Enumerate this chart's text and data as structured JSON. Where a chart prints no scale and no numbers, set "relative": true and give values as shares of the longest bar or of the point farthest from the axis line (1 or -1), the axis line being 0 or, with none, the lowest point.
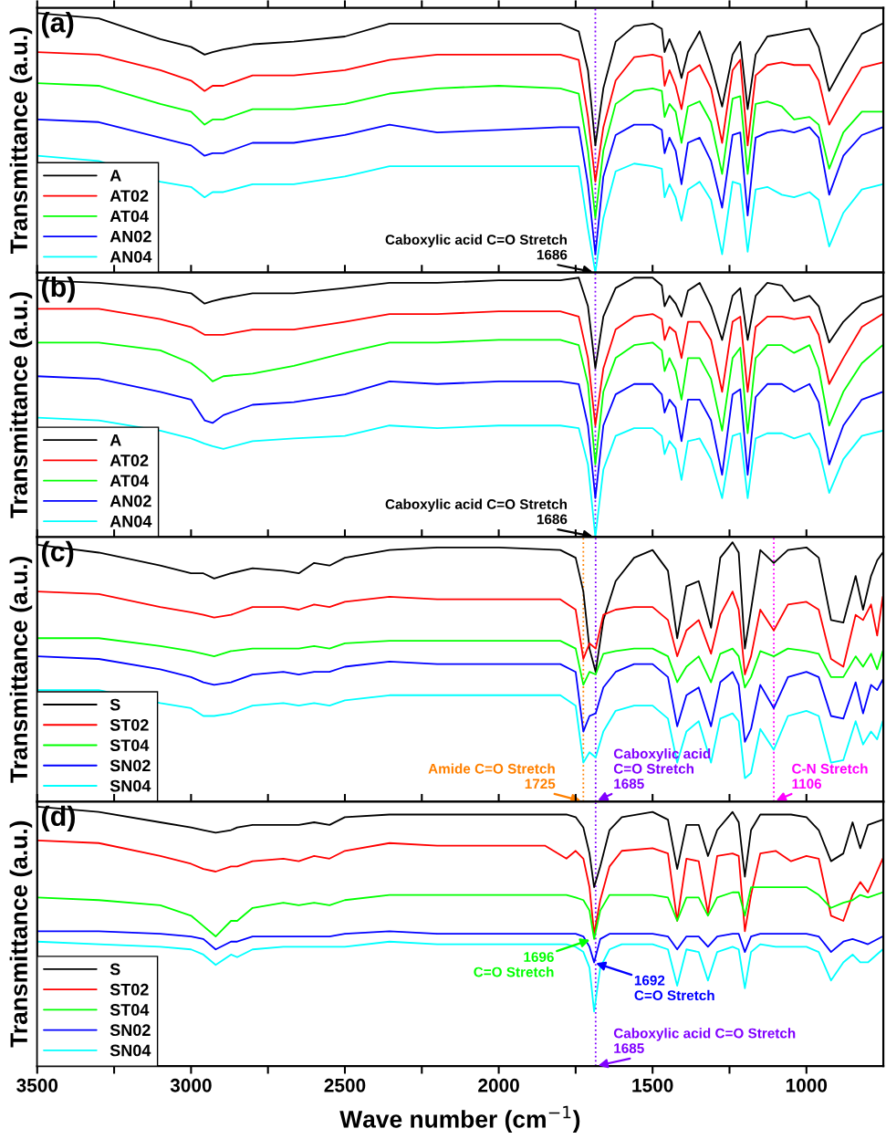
{
  "chart_data": [
    {
      "type": "line",
      "title": "(a)",
      "ylabel": "Transmittance (a.u.)",
      "relative": true,
      "legend": "bottom left",
      "tick_labels": false,
      "line_style": "solid",
      "marker": "none",
      "x": [
        3500,
        3300,
        3100,
        3000,
        2956,
        2930,
        2895,
        2800,
        2666,
        2500,
        2355,
        2200,
        2000,
        1800,
        1740,
        1710,
        1686,
        1660,
        1620,
        1560,
        1500,
        1470,
        1461,
        1445,
        1425,
        1406,
        1385,
        1347,
        1310,
        1274,
        1240,
        1215,
        1191,
        1165,
        1127,
        1080,
        1040,
        990,
        960,
        926,
        880,
        820,
        752
      ],
      "xlim": [
        3500,
        750
      ],
      "xticks": [
        3500,
        {
          "value": 3250,
          "label": null
        },
        3000,
        {
          "value": 2750,
          "label": null
        },
        2500,
        {
          "value": 2250,
          "label": null
        },
        2000,
        {
          "value": 1750,
          "label": null
        },
        1500,
        {
          "value": 1250,
          "label": null
        },
        1000
      ],
      "series": [
        {
          "name": "A",
          "color": "#000000",
          "values": [
            1.0,
            0.98,
            0.9,
            0.87,
            0.84,
            0.85,
            0.86,
            0.88,
            0.89,
            0.91,
            0.96,
            0.96,
            0.96,
            0.96,
            0.93,
            0.78,
            0.49,
            0.71,
            0.89,
            0.95,
            0.96,
            0.94,
            0.85,
            0.9,
            0.84,
            0.75,
            0.85,
            0.93,
            0.8,
            0.64,
            0.84,
            0.89,
            0.63,
            0.84,
            0.91,
            0.92,
            0.93,
            0.94,
            0.87,
            0.7,
            0.8,
            0.92,
            0.96
          ]
        },
        {
          "name": "AT02",
          "color": "#ff0000",
          "values": [
            0.85,
            0.84,
            0.78,
            0.74,
            0.7,
            0.72,
            0.72,
            0.76,
            0.76,
            0.78,
            0.82,
            0.84,
            0.84,
            0.84,
            0.82,
            0.6,
            0.35,
            0.56,
            0.74,
            0.83,
            0.84,
            0.83,
            0.72,
            0.78,
            0.72,
            0.63,
            0.77,
            0.8,
            0.71,
            0.5,
            0.78,
            0.82,
            0.49,
            0.76,
            0.8,
            0.81,
            0.8,
            0.8,
            0.74,
            0.57,
            0.67,
            0.79,
            0.81
          ]
        },
        {
          "name": "AT04",
          "color": "#00ff00",
          "values": [
            0.73,
            0.72,
            0.65,
            0.62,
            0.57,
            0.59,
            0.59,
            0.63,
            0.63,
            0.65,
            0.69,
            0.71,
            0.72,
            0.71,
            0.69,
            0.47,
            0.21,
            0.47,
            0.65,
            0.7,
            0.71,
            0.7,
            0.6,
            0.65,
            0.62,
            0.5,
            0.64,
            0.66,
            0.58,
            0.38,
            0.67,
            0.68,
            0.38,
            0.65,
            0.66,
            0.64,
            0.59,
            0.6,
            0.57,
            0.4,
            0.54,
            0.62,
            0.62
          ]
        },
        {
          "name": "AN02",
          "color": "#0000ff",
          "values": [
            0.59,
            0.58,
            0.52,
            0.49,
            0.45,
            0.46,
            0.46,
            0.5,
            0.5,
            0.53,
            0.57,
            0.54,
            0.55,
            0.56,
            0.56,
            0.34,
            0.07,
            0.37,
            0.53,
            0.57,
            0.57,
            0.55,
            0.46,
            0.52,
            0.47,
            0.34,
            0.5,
            0.52,
            0.43,
            0.25,
            0.53,
            0.54,
            0.22,
            0.52,
            0.54,
            0.55,
            0.54,
            0.56,
            0.52,
            0.3,
            0.45,
            0.53,
            0.56
          ]
        },
        {
          "name": "AN04",
          "color": "#00ffff",
          "values": [
            0.45,
            0.43,
            0.35,
            0.33,
            0.29,
            0.31,
            0.31,
            0.34,
            0.34,
            0.37,
            0.41,
            0.41,
            0.41,
            0.41,
            0.41,
            0.17,
            0.0,
            0.21,
            0.39,
            0.42,
            0.41,
            0.4,
            0.29,
            0.34,
            0.29,
            0.2,
            0.32,
            0.35,
            0.28,
            0.07,
            0.35,
            0.34,
            0.08,
            0.32,
            0.33,
            0.3,
            0.29,
            0.31,
            0.28,
            0.1,
            0.23,
            0.32,
            0.34
          ]
        }
      ],
      "ref_lines": [
        {
          "axis": "x",
          "value": 1686,
          "color": "#8000ff",
          "line_style": "dotted"
        }
      ],
      "annotations": [
        {
          "text": "Caboxylic acid C=O Stretch\n1686",
          "x": 1686,
          "y": 0
        }
      ]
    },
    {
      "type": "line",
      "title": "(b)",
      "ylabel": "Transmittance (a.u.)",
      "relative": true,
      "legend": "bottom left",
      "tick_labels": false,
      "line_style": "solid",
      "marker": "none",
      "x": [
        3500,
        3300,
        3100,
        3000,
        2956,
        2930,
        2895,
        2800,
        2666,
        2500,
        2355,
        2200,
        2000,
        1800,
        1740,
        1710,
        1686,
        1660,
        1620,
        1560,
        1500,
        1470,
        1461,
        1445,
        1425,
        1406,
        1385,
        1347,
        1310,
        1274,
        1240,
        1215,
        1191,
        1165,
        1127,
        1080,
        1040,
        990,
        960,
        926,
        880,
        820,
        752
      ],
      "xlim": [
        3500,
        750
      ],
      "xticks": [
        3500,
        {
          "value": 3250,
          "label": null
        },
        3000,
        {
          "value": 2750,
          "label": null
        },
        2500,
        {
          "value": 2250,
          "label": null
        },
        2000,
        {
          "value": 1750,
          "label": null
        },
        1500,
        {
          "value": 1250,
          "label": null
        },
        1000
      ],
      "series": [
        {
          "name": "A",
          "color": "#000000",
          "values": [
            0.99,
            0.98,
            0.96,
            0.94,
            0.9,
            0.91,
            0.92,
            0.94,
            0.94,
            0.96,
            0.98,
            0.98,
            0.99,
            0.99,
            1.0,
            0.89,
            0.65,
            0.85,
            0.96,
            1.0,
            1.0,
            0.97,
            0.89,
            0.93,
            0.9,
            0.85,
            0.95,
            0.98,
            0.89,
            0.76,
            0.93,
            0.96,
            0.76,
            0.93,
            0.98,
            0.97,
            0.91,
            0.93,
            0.89,
            0.75,
            0.83,
            0.9,
            0.93
          ]
        },
        {
          "name": "AT02",
          "color": "#ff0000",
          "values": [
            0.88,
            0.88,
            0.84,
            0.81,
            0.78,
            0.78,
            0.78,
            0.8,
            0.8,
            0.83,
            0.86,
            0.86,
            0.87,
            0.87,
            0.85,
            0.69,
            0.43,
            0.65,
            0.8,
            0.85,
            0.86,
            0.84,
            0.76,
            0.81,
            0.79,
            0.69,
            0.83,
            0.83,
            0.76,
            0.56,
            0.83,
            0.85,
            0.56,
            0.81,
            0.85,
            0.85,
            0.84,
            0.85,
            0.78,
            0.59,
            0.69,
            0.81,
            0.86
          ]
        },
        {
          "name": "AT04",
          "color": "#00ff00",
          "values": [
            0.75,
            0.75,
            0.72,
            0.67,
            0.63,
            0.6,
            0.62,
            0.63,
            0.66,
            0.71,
            0.75,
            0.75,
            0.76,
            0.76,
            0.74,
            0.59,
            0.28,
            0.56,
            0.69,
            0.74,
            0.75,
            0.72,
            0.64,
            0.69,
            0.64,
            0.53,
            0.69,
            0.69,
            0.61,
            0.41,
            0.69,
            0.73,
            0.4,
            0.69,
            0.74,
            0.74,
            0.71,
            0.74,
            0.65,
            0.43,
            0.56,
            0.67,
            0.74
          ]
        },
        {
          "name": "AN02",
          "color": "#0000ff",
          "values": [
            0.62,
            0.61,
            0.56,
            0.53,
            0.45,
            0.44,
            0.47,
            0.51,
            0.52,
            0.55,
            0.6,
            0.59,
            0.6,
            0.6,
            0.59,
            0.43,
            0.15,
            0.43,
            0.55,
            0.59,
            0.59,
            0.55,
            0.48,
            0.53,
            0.5,
            0.37,
            0.53,
            0.53,
            0.45,
            0.24,
            0.55,
            0.57,
            0.24,
            0.54,
            0.59,
            0.59,
            0.56,
            0.59,
            0.52,
            0.28,
            0.43,
            0.53,
            0.56
          ]
        },
        {
          "name": "AN04",
          "color": "#00ffff",
          "values": [
            0.46,
            0.45,
            0.41,
            0.38,
            0.36,
            0.35,
            0.34,
            0.37,
            0.38,
            0.39,
            0.43,
            0.42,
            0.43,
            0.43,
            0.42,
            0.28,
            0.0,
            0.26,
            0.39,
            0.42,
            0.42,
            0.39,
            0.32,
            0.37,
            0.34,
            0.22,
            0.37,
            0.38,
            0.3,
            0.15,
            0.39,
            0.4,
            0.15,
            0.38,
            0.4,
            0.4,
            0.38,
            0.4,
            0.34,
            0.17,
            0.3,
            0.39,
            0.41
          ]
        }
      ],
      "ref_lines": [
        {
          "axis": "x",
          "value": 1686,
          "color": "#8000ff",
          "line_style": "dotted"
        }
      ],
      "annotations": [
        {
          "text": "Caboxylic acid C=O Stretch\n1686",
          "x": 1686,
          "y": 0
        }
      ]
    },
    {
      "type": "line",
      "title": "(c)",
      "ylabel": "Transmittance (a.u.)",
      "relative": true,
      "legend": "bottom left",
      "tick_labels": false,
      "line_style": "solid",
      "marker": "none",
      "x": [
        3500,
        3300,
        3100,
        3000,
        2960,
        2925,
        2870,
        2800,
        2700,
        2650,
        2600,
        2550,
        2500,
        2355,
        2200,
        2000,
        1800,
        1750,
        1725,
        1705,
        1685,
        1660,
        1620,
        1560,
        1500,
        1450,
        1420,
        1390,
        1350,
        1310,
        1280,
        1240,
        1220,
        1200,
        1180,
        1150,
        1106,
        1060,
        1000,
        960,
        920,
        880,
        840,
        816,
        790,
        770,
        752
      ],
      "xlim": [
        3500,
        750
      ],
      "xticks": [
        3500,
        {
          "value": 3250,
          "label": null
        },
        3000,
        {
          "value": 2750,
          "label": null
        },
        2500,
        {
          "value": 2250,
          "label": null
        },
        2000,
        {
          "value": 1750,
          "label": null
        },
        1500,
        {
          "value": 1250,
          "label": null
        },
        1000
      ],
      "series": [
        {
          "name": "S",
          "color": "#000000",
          "values": [
            0.99,
            0.96,
            0.91,
            0.88,
            0.88,
            0.86,
            0.88,
            0.9,
            0.89,
            0.88,
            0.92,
            0.91,
            0.94,
            0.97,
            0.98,
            0.98,
            0.97,
            0.94,
            0.81,
            0.59,
            0.5,
            0.7,
            0.85,
            0.94,
            0.97,
            0.89,
            0.63,
            0.83,
            0.85,
            0.67,
            0.94,
            1.0,
            0.96,
            0.59,
            0.74,
            0.97,
            0.92,
            0.97,
            0.98,
            0.94,
            0.7,
            0.69,
            0.87,
            0.74,
            0.87,
            0.93,
            0.96
          ]
        },
        {
          "name": "ST02",
          "color": "#ff0000",
          "values": [
            0.81,
            0.8,
            0.75,
            0.73,
            0.72,
            0.71,
            0.72,
            0.75,
            0.75,
            0.74,
            0.76,
            0.75,
            0.77,
            0.79,
            0.78,
            0.78,
            0.78,
            0.74,
            0.55,
            0.61,
            0.59,
            0.72,
            0.74,
            0.75,
            0.75,
            0.7,
            0.56,
            0.66,
            0.7,
            0.57,
            0.72,
            0.81,
            0.74,
            0.49,
            0.56,
            0.74,
            0.66,
            0.76,
            0.77,
            0.74,
            0.55,
            0.52,
            0.72,
            0.7,
            0.76,
            0.64,
            0.79
          ]
        },
        {
          "name": "ST04",
          "color": "#00ff00",
          "values": [
            0.63,
            0.63,
            0.6,
            0.58,
            0.57,
            0.56,
            0.58,
            0.59,
            0.59,
            0.59,
            0.6,
            0.59,
            0.61,
            0.62,
            0.62,
            0.62,
            0.62,
            0.59,
            0.45,
            0.5,
            0.49,
            0.57,
            0.58,
            0.59,
            0.59,
            0.56,
            0.46,
            0.52,
            0.56,
            0.46,
            0.57,
            0.59,
            0.56,
            0.44,
            0.48,
            0.58,
            0.56,
            0.59,
            0.58,
            0.57,
            0.48,
            0.48,
            0.56,
            0.52,
            0.57,
            0.51,
            0.58
          ]
        },
        {
          "name": "SN02",
          "color": "#0000ff",
          "values": [
            0.56,
            0.55,
            0.51,
            0.48,
            0.46,
            0.45,
            0.46,
            0.49,
            0.5,
            0.49,
            0.5,
            0.5,
            0.52,
            0.54,
            0.53,
            0.53,
            0.53,
            0.5,
            0.27,
            0.33,
            0.34,
            0.44,
            0.5,
            0.53,
            0.53,
            0.48,
            0.29,
            0.41,
            0.44,
            0.29,
            0.46,
            0.5,
            0.45,
            0.23,
            0.28,
            0.45,
            0.36,
            0.48,
            0.5,
            0.48,
            0.33,
            0.32,
            0.46,
            0.34,
            0.45,
            0.43,
            0.47
          ]
        },
        {
          "name": "SN04",
          "color": "#00ffff",
          "values": [
            0.43,
            0.43,
            0.38,
            0.36,
            0.33,
            0.33,
            0.34,
            0.37,
            0.38,
            0.37,
            0.38,
            0.37,
            0.39,
            0.41,
            0.41,
            0.41,
            0.41,
            0.37,
            0.15,
            0.19,
            0.17,
            0.27,
            0.35,
            0.37,
            0.37,
            0.32,
            0.15,
            0.27,
            0.31,
            0.15,
            0.32,
            0.34,
            0.31,
            0.09,
            0.11,
            0.28,
            0.2,
            0.33,
            0.35,
            0.33,
            0.15,
            0.16,
            0.31,
            0.22,
            0.27,
            0.24,
            0.31
          ]
        }
      ],
      "ref_lines": [
        {
          "axis": "x",
          "value": 1725,
          "color": "#ff8000",
          "line_style": "dotted"
        },
        {
          "axis": "x",
          "value": 1685,
          "color": "#8000ff",
          "line_style": "dotted"
        },
        {
          "axis": "x",
          "value": 1106,
          "color": "#ff00ff",
          "line_style": "dotted"
        }
      ],
      "annotations": [
        {
          "text": "Amide C=O Stretch\n1725",
          "x": 1725,
          "y": 0
        },
        {
          "text": "Caboxylic acid\nC=O Stretch\n1685",
          "x": 1685,
          "y": 0
        },
        {
          "text": "C-N Stretch\n1106",
          "x": 1106,
          "y": 0
        }
      ]
    },
    {
      "type": "line",
      "title": "(d)",
      "ylabel": "Transmittance (a.u.)",
      "xlabel": "Wave number (cm$^{−1}$)",
      "relative": true,
      "legend": "bottom left",
      "tick_labels": "x",
      "line_style": "solid",
      "marker": "none",
      "x": [
        3500,
        3300,
        3100,
        3000,
        2960,
        2920,
        2870,
        2850,
        2800,
        2700,
        2650,
        2600,
        2550,
        2500,
        2355,
        2200,
        2000,
        1850,
        1780,
        1750,
        1725,
        1705,
        1690,
        1670,
        1640,
        1600,
        1500,
        1450,
        1420,
        1390,
        1350,
        1320,
        1290,
        1240,
        1220,
        1200,
        1180,
        1150,
        1100,
        1050,
        1000,
        960,
        920,
        880,
        850,
        825,
        800,
        752
      ],
      "xlim": [
        3500,
        750
      ],
      "xticks": [
        3500,
        {
          "value": 3250,
          "label": null
        },
        3000,
        {
          "value": 2750,
          "label": null
        },
        2500,
        {
          "value": 2250,
          "label": null
        },
        2000,
        {
          "value": 1750,
          "label": null
        },
        1500,
        {
          "value": 1250,
          "label": null
        },
        1000
      ],
      "series": [
        {
          "name": "S",
          "color": "#000000",
          "values": [
            1.0,
            0.98,
            0.94,
            0.92,
            0.91,
            0.9,
            0.91,
            0.92,
            0.93,
            0.93,
            0.93,
            0.94,
            0.93,
            0.96,
            0.97,
            0.97,
            0.97,
            0.97,
            0.97,
            0.96,
            0.92,
            0.82,
            0.69,
            0.77,
            0.91,
            0.96,
            0.98,
            0.95,
            0.76,
            0.93,
            0.93,
            0.81,
            0.91,
            0.98,
            0.94,
            0.73,
            0.91,
            0.97,
            0.97,
            0.97,
            0.96,
            0.91,
            0.79,
            0.82,
            0.94,
            0.84,
            0.93,
            0.95
          ]
        },
        {
          "name": "ST02",
          "color": "#ff0000",
          "values": [
            0.87,
            0.86,
            0.81,
            0.78,
            0.76,
            0.75,
            0.77,
            0.77,
            0.79,
            0.8,
            0.79,
            0.81,
            0.8,
            0.83,
            0.86,
            0.85,
            0.85,
            0.85,
            0.8,
            0.83,
            0.8,
            0.69,
            0.51,
            0.64,
            0.77,
            0.83,
            0.84,
            0.82,
            0.56,
            0.8,
            0.79,
            0.59,
            0.81,
            0.82,
            0.81,
            0.52,
            0.66,
            0.82,
            0.83,
            0.79,
            0.81,
            0.8,
            0.58,
            0.56,
            0.66,
            0.71,
            0.67,
            0.8
          ]
        },
        {
          "name": "ST04",
          "color": "#00ff00",
          "values": [
            0.65,
            0.64,
            0.62,
            0.58,
            0.54,
            0.5,
            0.56,
            0.56,
            0.61,
            0.63,
            0.62,
            0.63,
            0.62,
            0.64,
            0.66,
            0.66,
            0.66,
            0.66,
            0.66,
            0.65,
            0.64,
            0.6,
            0.49,
            0.6,
            0.66,
            0.66,
            0.66,
            0.65,
            0.56,
            0.65,
            0.65,
            0.58,
            0.65,
            0.67,
            0.67,
            0.58,
            0.69,
            0.69,
            0.69,
            0.69,
            0.69,
            0.66,
            0.61,
            0.63,
            0.64,
            0.66,
            0.65,
            0.67
          ]
        },
        {
          "name": "SN02",
          "color": "#0000ff",
          "values": [
            0.52,
            0.52,
            0.51,
            0.5,
            0.49,
            0.45,
            0.48,
            0.48,
            0.5,
            0.5,
            0.5,
            0.5,
            0.5,
            0.51,
            0.52,
            0.51,
            0.51,
            0.51,
            0.51,
            0.51,
            0.5,
            0.46,
            0.4,
            0.49,
            0.51,
            0.51,
            0.51,
            0.5,
            0.45,
            0.5,
            0.5,
            0.46,
            0.5,
            0.51,
            0.51,
            0.44,
            0.5,
            0.51,
            0.51,
            0.51,
            0.51,
            0.5,
            0.44,
            0.48,
            0.49,
            0.48,
            0.47,
            0.5
          ]
        },
        {
          "name": "SN04",
          "color": "#00ffff",
          "values": [
            0.48,
            0.47,
            0.46,
            0.45,
            0.43,
            0.39,
            0.43,
            0.42,
            0.45,
            0.46,
            0.46,
            0.46,
            0.46,
            0.46,
            0.48,
            0.47,
            0.47,
            0.47,
            0.47,
            0.46,
            0.44,
            0.38,
            0.21,
            0.38,
            0.45,
            0.47,
            0.47,
            0.45,
            0.31,
            0.45,
            0.44,
            0.33,
            0.44,
            0.46,
            0.45,
            0.3,
            0.44,
            0.47,
            0.46,
            0.46,
            0.46,
            0.44,
            0.33,
            0.4,
            0.43,
            0.4,
            0.4,
            0.45
          ]
        }
      ],
      "ref_lines": [
        {
          "axis": "x",
          "value": 1685,
          "color": "#8000ff",
          "line_style": "dotted"
        }
      ],
      "annotations": [
        {
          "text": "1696\nC=O Stretch",
          "x": 1696,
          "y": 0.49
        },
        {
          "text": "1692\nC=O Stretch",
          "x": 1692,
          "y": 0.4
        },
        {
          "text": "Caboxylic acid C=O Stretch\n1685",
          "x": 1685,
          "y": 0
        }
      ]
    }
  ]
}
